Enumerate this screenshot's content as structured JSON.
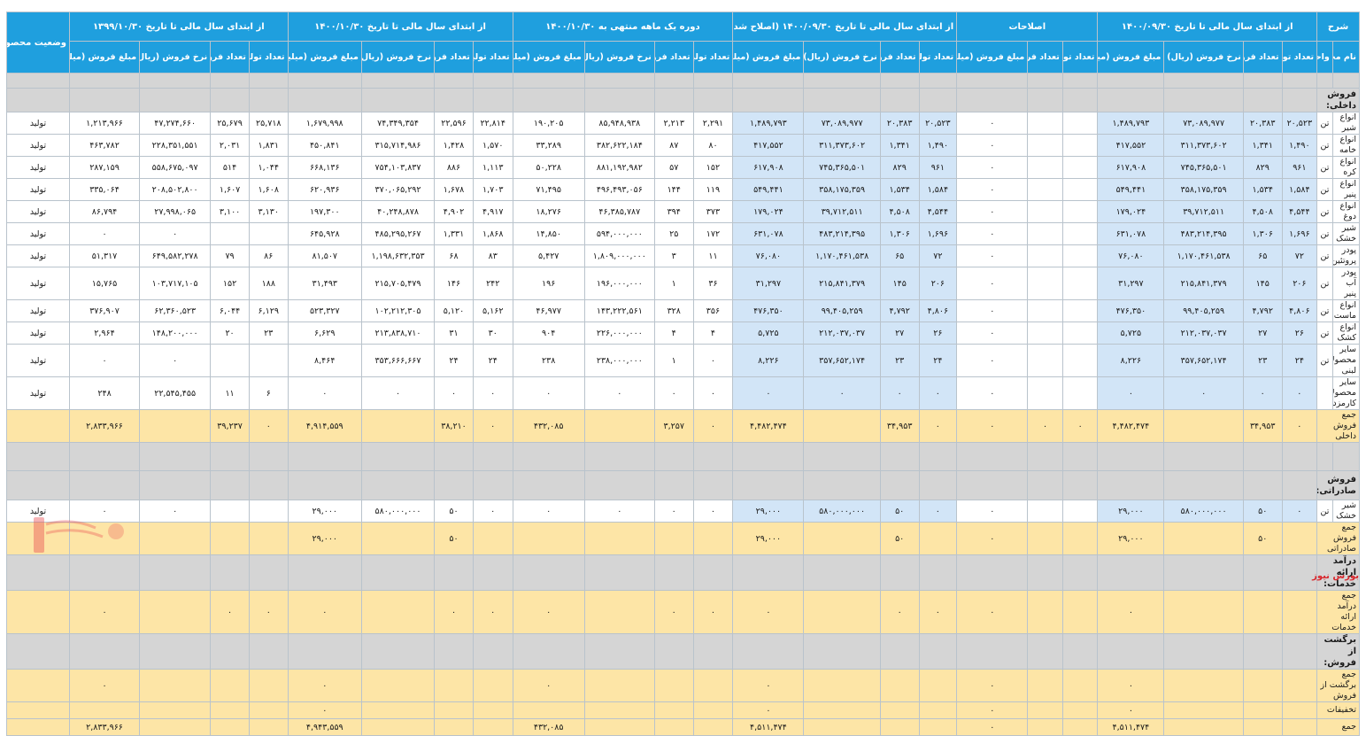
{
  "headers": {
    "sharh": "شرح",
    "groups": [
      "از ابتدای سال مالی تا تاریخ ۱۴۰۰/۰۹/۳۰",
      "اصلاحات",
      "از ابتدای سال مالی تا تاریخ ۱۴۰۰/۰۹/۳۰ (اصلاح شده)",
      "دوره یک ماهه منتهی به ۱۴۰۰/۱۰/۳۰",
      "از ابتدای سال مالی تا تاریخ ۱۴۰۰/۱۰/۳۰",
      "از ابتدای سال مالی تا تاریخ ۱۳۹۹/۱۰/۳۰"
    ],
    "status": "وضعیت محصول-واحد",
    "name": "نام محصول",
    "unit": "واحد",
    "sub4": [
      "تعداد تولید",
      "تعداد فروش",
      "نرخ فروش (ریال)",
      "مبلغ فروش (میلیون ریال)"
    ],
    "sub3": [
      "تعداد تولید",
      "تعداد فروش",
      "مبلغ فروش (میلیون ریال)"
    ]
  },
  "sections": {
    "domestic": "فروش داخلی:",
    "export": "فروش صادراتی:",
    "services": "درآمد ارائه خدمات:",
    "returns": "برگشت از فروش:"
  },
  "domestic_rows": [
    {
      "name": "انواع شیر",
      "unit": "تن",
      "status": "تولید",
      "c": [
        "۲۰,۵۲۳",
        "۲۰,۳۸۳",
        "۷۳,۰۸۹,۹۷۷",
        "۱,۴۸۹,۷۹۳",
        "",
        "",
        "۰",
        "۲۰,۵۲۳",
        "۲۰,۳۸۳",
        "۷۳,۰۸۹,۹۷۷",
        "۱,۴۸۹,۷۹۳",
        "۲,۲۹۱",
        "۲,۲۱۳",
        "۸۵,۹۴۸,۹۳۸",
        "۱۹۰,۲۰۵",
        "۲۲,۸۱۴",
        "۲۲,۵۹۶",
        "۷۴,۳۴۹,۳۵۴",
        "۱,۶۷۹,۹۹۸",
        "۲۵,۷۱۸",
        "۲۵,۶۷۹",
        "۴۷,۲۷۴,۶۶۰",
        "۱,۲۱۳,۹۶۶"
      ]
    },
    {
      "name": "انواع خامه",
      "unit": "تن",
      "status": "تولید",
      "c": [
        "۱,۴۹۰",
        "۱,۳۴۱",
        "۳۱۱,۳۷۳,۶۰۲",
        "۴۱۷,۵۵۲",
        "",
        "",
        "۰",
        "۱,۴۹۰",
        "۱,۳۴۱",
        "۳۱۱,۳۷۳,۶۰۲",
        "۴۱۷,۵۵۲",
        "۸۰",
        "۸۷",
        "۳۸۲,۶۲۲,۱۸۴",
        "۳۳,۲۸۹",
        "۱,۵۷۰",
        "۱,۴۲۸",
        "۳۱۵,۷۱۴,۹۸۶",
        "۴۵۰,۸۴۱",
        "۱,۸۳۱",
        "۲,۰۳۱",
        "۲۲۸,۳۵۱,۵۵۱",
        "۴۶۳,۷۸۲"
      ]
    },
    {
      "name": "انواع کره",
      "unit": "تن",
      "status": "تولید",
      "c": [
        "۹۶۱",
        "۸۲۹",
        "۷۴۵,۳۶۵,۵۰۱",
        "۶۱۷,۹۰۸",
        "",
        "",
        "۰",
        "۹۶۱",
        "۸۲۹",
        "۷۴۵,۳۶۵,۵۰۱",
        "۶۱۷,۹۰۸",
        "۱۵۲",
        "۵۷",
        "۸۸۱,۱۹۲,۹۸۲",
        "۵۰,۲۲۸",
        "۱,۱۱۳",
        "۸۸۶",
        "۷۵۴,۱۰۳,۸۳۷",
        "۶۶۸,۱۳۶",
        "۱,۰۴۴",
        "۵۱۴",
        "۵۵۸,۶۷۵,۰۹۷",
        "۲۸۷,۱۵۹"
      ]
    },
    {
      "name": "انواع پنیر",
      "unit": "تن",
      "status": "تولید",
      "c": [
        "۱,۵۸۴",
        "۱,۵۳۴",
        "۳۵۸,۱۷۵,۳۵۹",
        "۵۴۹,۴۴۱",
        "",
        "",
        "۰",
        "۱,۵۸۴",
        "۱,۵۳۴",
        "۳۵۸,۱۷۵,۳۵۹",
        "۵۴۹,۴۴۱",
        "۱۱۹",
        "۱۴۴",
        "۴۹۶,۴۹۳,۰۵۶",
        "۷۱,۴۹۵",
        "۱,۷۰۳",
        "۱,۶۷۸",
        "۳۷۰,۰۶۵,۲۹۲",
        "۶۲۰,۹۳۶",
        "۱,۶۰۸",
        "۱,۶۰۷",
        "۲۰۸,۵۰۲,۸۰۰",
        "۳۳۵,۰۶۴"
      ]
    },
    {
      "name": "انواع دوغ",
      "unit": "تن",
      "status": "تولید",
      "c": [
        "۴,۵۴۴",
        "۴,۵۰۸",
        "۳۹,۷۱۲,۵۱۱",
        "۱۷۹,۰۲۴",
        "",
        "",
        "۰",
        "۴,۵۴۴",
        "۴,۵۰۸",
        "۳۹,۷۱۲,۵۱۱",
        "۱۷۹,۰۲۴",
        "۳۷۳",
        "۳۹۴",
        "۴۶,۳۸۵,۷۸۷",
        "۱۸,۲۷۶",
        "۴,۹۱۷",
        "۴,۹۰۲",
        "۴۰,۲۴۸,۸۷۸",
        "۱۹۷,۳۰۰",
        "۳,۱۳۰",
        "۳,۱۰۰",
        "۲۷,۹۹۸,۰۶۵",
        "۸۶,۷۹۴"
      ]
    },
    {
      "name": "شیر خشک",
      "unit": "تن",
      "status": "تولید",
      "c": [
        "۱,۶۹۶",
        "۱,۳۰۶",
        "۴۸۳,۲۱۴,۳۹۵",
        "۶۳۱,۰۷۸",
        "",
        "",
        "۰",
        "۱,۶۹۶",
        "۱,۳۰۶",
        "۴۸۳,۲۱۴,۳۹۵",
        "۶۳۱,۰۷۸",
        "۱۷۲",
        "۲۵",
        "۵۹۴,۰۰۰,۰۰۰",
        "۱۴,۸۵۰",
        "۱,۸۶۸",
        "۱,۳۳۱",
        "۴۸۵,۲۹۵,۲۶۷",
        "۶۴۵,۹۲۸",
        "",
        "",
        "۰",
        "۰"
      ]
    },
    {
      "name": "پودر پروتئین",
      "unit": "تن",
      "status": "تولید",
      "c": [
        "۷۲",
        "۶۵",
        "۱,۱۷۰,۴۶۱,۵۳۸",
        "۷۶,۰۸۰",
        "",
        "",
        "۰",
        "۷۲",
        "۶۵",
        "۱,۱۷۰,۴۶۱,۵۳۸",
        "۷۶,۰۸۰",
        "۱۱",
        "۳",
        "۱,۸۰۹,۰۰۰,۰۰۰",
        "۵,۴۲۷",
        "۸۳",
        "۶۸",
        "۱,۱۹۸,۶۳۲,۳۵۳",
        "۸۱,۵۰۷",
        "۸۶",
        "۷۹",
        "۶۴۹,۵۸۲,۲۷۸",
        "۵۱,۳۱۷"
      ]
    },
    {
      "name": "پودر آب پنیر",
      "unit": "تن",
      "status": "تولید",
      "c": [
        "۲۰۶",
        "۱۴۵",
        "۲۱۵,۸۴۱,۳۷۹",
        "۳۱,۲۹۷",
        "",
        "",
        "۰",
        "۲۰۶",
        "۱۴۵",
        "۲۱۵,۸۴۱,۳۷۹",
        "۳۱,۲۹۷",
        "۳۶",
        "۱",
        "۱۹۶,۰۰۰,۰۰۰",
        "۱۹۶",
        "۲۴۲",
        "۱۴۶",
        "۲۱۵,۷۰۵,۴۷۹",
        "۳۱,۴۹۳",
        "۱۸۸",
        "۱۵۲",
        "۱۰۳,۷۱۷,۱۰۵",
        "۱۵,۷۶۵"
      ]
    },
    {
      "name": "انواع ماست",
      "unit": "تن",
      "status": "تولید",
      "c": [
        "۴,۸۰۶",
        "۴,۷۹۲",
        "۹۹,۴۰۵,۲۵۹",
        "۴۷۶,۳۵۰",
        "",
        "",
        "۰",
        "۴,۸۰۶",
        "۴,۷۹۲",
        "۹۹,۴۰۵,۲۵۹",
        "۴۷۶,۳۵۰",
        "۳۵۶",
        "۳۲۸",
        "۱۴۳,۲۲۲,۵۶۱",
        "۴۶,۹۷۷",
        "۵,۱۶۲",
        "۵,۱۲۰",
        "۱۰۲,۲۱۲,۳۰۵",
        "۵۲۳,۳۲۷",
        "۶,۱۲۹",
        "۶,۰۴۴",
        "۶۲,۳۶۰,۵۲۳",
        "۳۷۶,۹۰۷"
      ]
    },
    {
      "name": "انواع کشک",
      "unit": "تن",
      "status": "تولید",
      "c": [
        "۲۶",
        "۲۷",
        "۲۱۲,۰۳۷,۰۳۷",
        "۵,۷۲۵",
        "",
        "",
        "۰",
        "۲۶",
        "۲۷",
        "۲۱۲,۰۳۷,۰۳۷",
        "۵,۷۲۵",
        "۴",
        "۴",
        "۲۲۶,۰۰۰,۰۰۰",
        "۹۰۴",
        "۳۰",
        "۳۱",
        "۲۱۳,۸۳۸,۷۱۰",
        "۶,۶۲۹",
        "۲۳",
        "۲۰",
        "۱۴۸,۲۰۰,۰۰۰",
        "۲,۹۶۴"
      ]
    },
    {
      "name": "سایر محصولات لبنی",
      "unit": "تن",
      "status": "تولید",
      "c": [
        "۲۴",
        "۲۳",
        "۳۵۷,۶۵۲,۱۷۴",
        "۸,۲۲۶",
        "",
        "",
        "۰",
        "۲۴",
        "۲۳",
        "۳۵۷,۶۵۲,۱۷۴",
        "۸,۲۲۶",
        "۰",
        "۱",
        "۲۳۸,۰۰۰,۰۰۰",
        "۲۳۸",
        "۲۴",
        "۲۴",
        "۳۵۳,۶۶۶,۶۶۷",
        "۸,۴۶۴",
        "",
        "",
        "۰",
        "۰"
      ]
    },
    {
      "name": "سایر محصولات کارمزدی",
      "unit": "",
      "status": "تولید",
      "c": [
        "۰",
        "۰",
        "۰",
        "۰",
        "",
        "",
        "۰",
        "۰",
        "۰",
        "۰",
        "۰",
        "۰",
        "۰",
        "۰",
        "۰",
        "۰",
        "۰",
        "۰",
        "۰",
        "۶",
        "۱۱",
        "۲۲,۵۴۵,۴۵۵",
        "۲۴۸"
      ]
    }
  ],
  "domestic_total": {
    "name": "جمع فروش داخلی",
    "c": [
      "۰",
      "۳۴,۹۵۳",
      "",
      "۴,۴۸۲,۴۷۴",
      "۰",
      "۰",
      "۰",
      "۰",
      "۳۴,۹۵۳",
      "",
      "۴,۴۸۲,۴۷۴",
      "۰",
      "۳,۲۵۷",
      "",
      "۴۳۲,۰۸۵",
      "۰",
      "۳۸,۲۱۰",
      "",
      "۴,۹۱۴,۵۵۹",
      "۰",
      "۳۹,۲۳۷",
      "",
      "۲,۸۳۳,۹۶۶"
    ]
  },
  "export_rows": [
    {
      "name": "شیر خشک",
      "unit": "تن",
      "status": "تولید",
      "c": [
        "۰",
        "۵۰",
        "۵۸۰,۰۰۰,۰۰۰",
        "۲۹,۰۰۰",
        "",
        "",
        "۰",
        "۰",
        "۵۰",
        "۵۸۰,۰۰۰,۰۰۰",
        "۲۹,۰۰۰",
        "۰",
        "۰",
        "۰",
        "۰",
        "۰",
        "۵۰",
        "۵۸۰,۰۰۰,۰۰۰",
        "۲۹,۰۰۰",
        "",
        "",
        "۰",
        "۰"
      ]
    }
  ],
  "export_total": {
    "name": "جمع فروش صادراتی",
    "c": [
      "",
      "۵۰",
      "",
      "۲۹,۰۰۰",
      "",
      "",
      "۰",
      "",
      "۵۰",
      "",
      "۲۹,۰۰۰",
      "",
      "",
      "",
      "",
      "",
      "۵۰",
      "",
      "۲۹,۰۰۰",
      "",
      "",
      "",
      ""
    ]
  },
  "services_total": {
    "name": "جمع درآمد ارائه خدمات",
    "c": [
      "",
      "",
      "",
      "۰",
      "",
      "",
      "۰",
      "۰",
      "۰",
      "",
      "۰",
      "۰",
      "۰",
      "",
      "۰",
      "۰",
      "۰",
      "",
      "۰",
      "۰",
      "۰",
      "",
      "۰"
    ]
  },
  "returns_total": {
    "name": "جمع برگشت از فروش",
    "c": [
      "",
      "",
      "",
      "۰",
      "",
      "",
      "۰",
      "",
      "",
      "",
      "۰",
      "",
      "",
      "",
      "۰",
      "",
      "",
      "",
      "۰",
      "",
      "",
      "",
      "۰"
    ]
  },
  "discounts": {
    "name": "تخفیفات",
    "c": [
      "",
      "",
      "",
      "۰",
      "",
      "",
      "۰",
      "",
      "",
      "",
      "۰",
      "",
      "",
      "",
      "",
      "",
      "",
      "",
      "۰",
      "",
      "",
      "",
      ""
    ]
  },
  "grand_total": {
    "name": "جمع",
    "c": [
      "",
      "",
      "",
      "۴,۵۱۱,۴۷۴",
      "",
      "",
      "۰",
      "",
      "",
      "",
      "۴,۵۱۱,۴۷۴",
      "",
      "",
      "",
      "۴۳۲,۰۸۵",
      "",
      "",
      "",
      "۴,۹۴۳,۵۵۹",
      "",
      "",
      "",
      "۲,۸۳۳,۹۶۶"
    ]
  },
  "watermark": "بورس نیوز",
  "colors": {
    "header": "#1f9fde",
    "highlight": "#fde5a6",
    "blue_cell": "#d2e5f7",
    "section": "#d5d5d5",
    "watermark": "#d9262c"
  }
}
